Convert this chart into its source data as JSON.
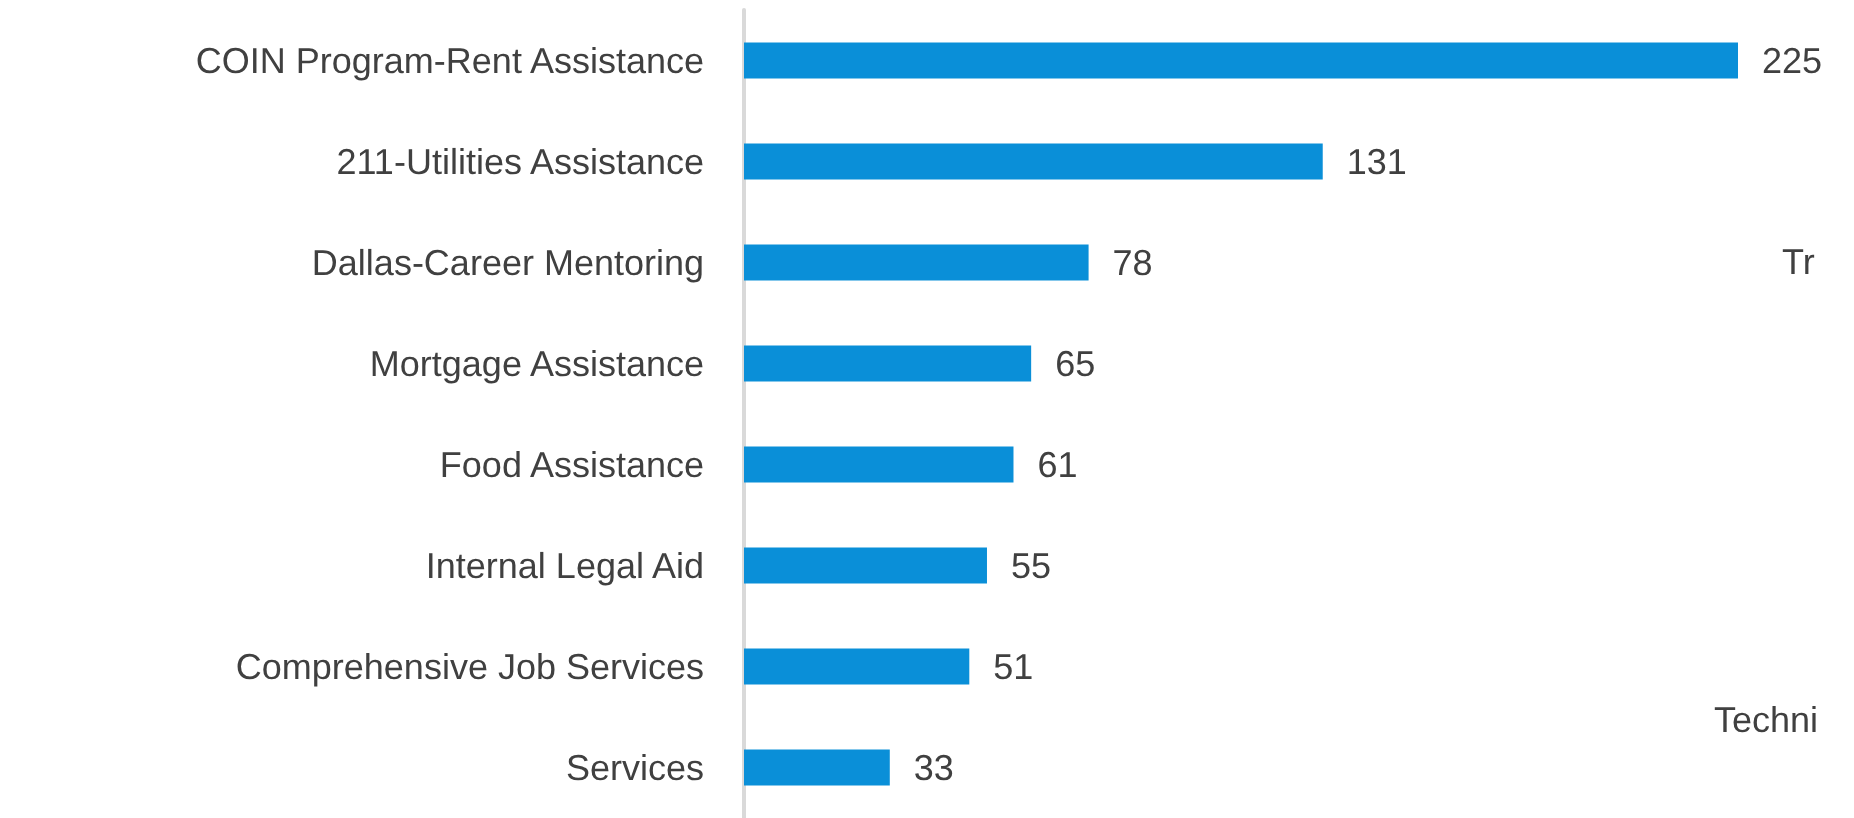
{
  "chart_data": {
    "type": "bar",
    "orientation": "horizontal",
    "categories": [
      "COIN Program-Rent Assistance",
      "211-Utilities Assistance",
      "Dallas-Career Mentoring",
      "Mortgage Assistance",
      "Food Assistance",
      "Internal Legal Aid",
      "Comprehensive Job Services",
      "Services"
    ],
    "values": [
      225,
      131,
      78,
      65,
      61,
      55,
      51,
      33
    ],
    "color": "#0a8fd8",
    "data_labels": true,
    "grid": false,
    "annotations": [
      "Tr",
      "Techni"
    ]
  }
}
